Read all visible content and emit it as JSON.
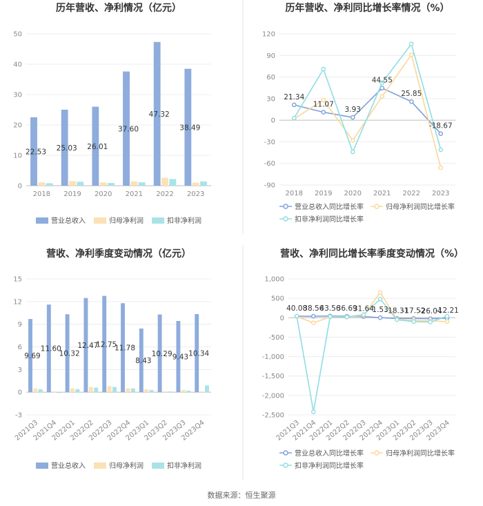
{
  "source": "数据来源：恒生聚源",
  "chart_data": [
    {
      "type": "bar",
      "title": "历年营收、净利情况（亿元）",
      "categories": [
        "2018",
        "2019",
        "2020",
        "2021",
        "2022",
        "2023"
      ],
      "ylim": [
        0,
        50
      ],
      "yticks": [
        0,
        10,
        20,
        30,
        40,
        50
      ],
      "label_series": 0,
      "data_labels": [
        "22.53",
        "25.03",
        "26.01",
        "37.60",
        "47.32",
        "38.49"
      ],
      "series": [
        {
          "name": "营业总收入",
          "color": "#8eacdc",
          "values": [
            22.53,
            25.03,
            26.01,
            37.6,
            47.32,
            38.49
          ]
        },
        {
          "name": "归母净利润",
          "color": "#fbe1b5",
          "values": [
            1.1,
            1.5,
            1.1,
            1.4,
            2.6,
            1.0
          ]
        },
        {
          "name": "扣非净利润",
          "color": "#a9e3e6",
          "values": [
            0.8,
            1.3,
            0.9,
            1.1,
            2.2,
            1.4
          ]
        }
      ]
    },
    {
      "type": "line",
      "title": "历年营收、净利同比增长率情况（%）",
      "categories": [
        "2018",
        "2019",
        "2020",
        "2021",
        "2022",
        "2023"
      ],
      "ylim": [
        -90,
        120
      ],
      "yticks": [
        -90,
        -60,
        -30,
        0,
        30,
        60,
        90,
        120
      ],
      "label_series": 0,
      "data_labels": [
        "21.34",
        "11.07",
        "3.93",
        "44.55",
        "25.85",
        "-18.67"
      ],
      "series": [
        {
          "name": "营业总收入同比增长率",
          "color": "#7d9fd8",
          "values": [
            21.34,
            11.07,
            3.93,
            44.55,
            25.85,
            -18.67
          ]
        },
        {
          "name": "归母净利润同比增长率",
          "color": "#fbd79a",
          "values": [
            2,
            28,
            -28,
            33,
            91,
            -66
          ]
        },
        {
          "name": "扣非净利润同比增长率",
          "color": "#8fdde2",
          "values": [
            3,
            71,
            -44,
            52,
            106,
            -41
          ]
        }
      ]
    },
    {
      "type": "bar",
      "title": "营收、净利季度变动情况（亿元）",
      "categories": [
        "2021Q3",
        "2021Q4",
        "2022Q1",
        "2022Q2",
        "2022Q3",
        "2022Q4",
        "2023Q1",
        "2023Q2",
        "2023Q3",
        "2023Q4"
      ],
      "ylim": [
        -3,
        15
      ],
      "yticks": [
        -3,
        0,
        3,
        6,
        9,
        12,
        15
      ],
      "label_series": 0,
      "data_labels": [
        "9.69",
        "11.60",
        "10.32",
        "12.47",
        "12.75",
        "11.78",
        "8.43",
        "10.29",
        "9.43",
        "10.34"
      ],
      "series": [
        {
          "name": "营业总收入",
          "color": "#8eacdc",
          "values": [
            9.69,
            11.6,
            10.32,
            12.47,
            12.75,
            11.78,
            8.43,
            10.29,
            9.43,
            10.34
          ]
        },
        {
          "name": "归母净利润",
          "color": "#fbe1b5",
          "values": [
            0.5,
            0.0,
            0.5,
            0.7,
            0.8,
            0.5,
            0.4,
            0.1,
            0.3,
            0.1
          ]
        },
        {
          "name": "扣非净利润",
          "color": "#a9e3e6",
          "values": [
            0.4,
            -0.1,
            0.4,
            0.6,
            0.7,
            0.5,
            0.3,
            0.1,
            0.2,
            0.9
          ]
        }
      ]
    },
    {
      "type": "line",
      "title": "营收、净利同比增长率季度变动情况（%）",
      "categories": [
        "2021Q3",
        "2021Q4",
        "2022Q1",
        "2022Q2",
        "2022Q3",
        "2022Q4",
        "2023Q1",
        "2023Q2",
        "2023Q3",
        "2023Q4"
      ],
      "ylim": [
        -2500,
        1000
      ],
      "yticks": [
        -2500,
        -2000,
        -1500,
        -1000,
        -500,
        0,
        500,
        1000
      ],
      "yticklabels": [
        "-2,500",
        "-2,000",
        "-1,500",
        "-1,000",
        "-500",
        "0",
        "500",
        "1,000"
      ],
      "label_series": 0,
      "data_labels": [
        "40.08",
        "38.56",
        "43.56",
        "36.69",
        "31.64",
        "1.53",
        "-18.31",
        "-17.52",
        "-26.04",
        "-12.21"
      ],
      "series": [
        {
          "name": "营业总收入同比增长率",
          "color": "#7d9fd8",
          "values": [
            40.08,
            38.56,
            43.56,
            36.69,
            31.64,
            1.53,
            -18.31,
            -17.52,
            -26.04,
            -12.21
          ]
        },
        {
          "name": "归母净利润同比增长率",
          "color": "#fbd79a",
          "values": [
            30,
            -130,
            20,
            20,
            60,
            650,
            -40,
            -70,
            -80,
            -100
          ]
        },
        {
          "name": "扣非净利润同比增长率",
          "color": "#8fdde2",
          "values": [
            40,
            -2420,
            30,
            20,
            80,
            480,
            -50,
            -100,
            -110,
            40
          ]
        }
      ]
    }
  ]
}
